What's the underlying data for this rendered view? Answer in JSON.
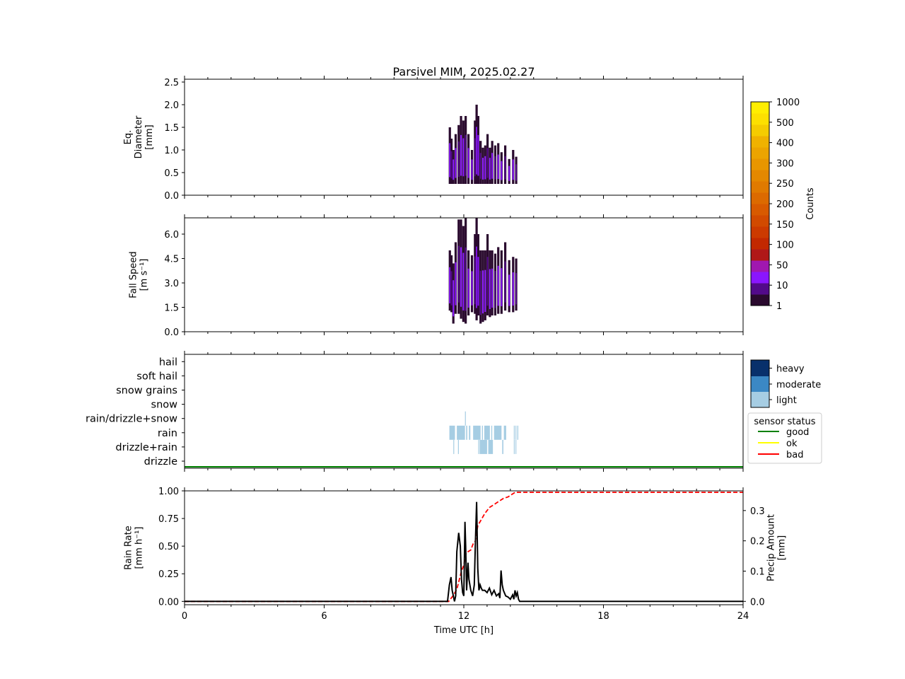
{
  "title": "Parsivel MIM, 2025.02.27",
  "chart_data": [
    {
      "type": "heatmap",
      "panel": "diameter",
      "ylabel": [
        "Eq.",
        "Diameter",
        "[mm]"
      ],
      "xlim": [
        0,
        24
      ],
      "ylim": [
        0,
        2.5
      ],
      "yticks": [
        0.0,
        0.5,
        1.0,
        1.5,
        2.0,
        2.5
      ],
      "ytick_labels": [
        "0.0",
        "0.5",
        "1.0",
        "1.5",
        "2.0",
        "2.5"
      ],
      "columns": [
        {
          "t": 11.4,
          "lo": 0.25,
          "hi": 1.5
        },
        {
          "t": 11.47,
          "lo": 0.25,
          "hi": 1.25
        },
        {
          "t": 11.55,
          "lo": 0.25,
          "hi": 1.0
        },
        {
          "t": 11.65,
          "lo": 0.25,
          "hi": 1.35
        },
        {
          "t": 11.78,
          "lo": 0.25,
          "hi": 1.55
        },
        {
          "t": 11.88,
          "lo": 0.25,
          "hi": 1.75
        },
        {
          "t": 11.98,
          "lo": 0.25,
          "hi": 1.65
        },
        {
          "t": 12.08,
          "lo": 0.25,
          "hi": 1.75
        },
        {
          "t": 12.2,
          "lo": 0.25,
          "hi": 1.35
        },
        {
          "t": 12.35,
          "lo": 0.25,
          "hi": 1.0
        },
        {
          "t": 12.48,
          "lo": 0.25,
          "hi": 1.65
        },
        {
          "t": 12.55,
          "lo": 0.25,
          "hi": 2.0
        },
        {
          "t": 12.62,
          "lo": 0.25,
          "hi": 1.75
        },
        {
          "t": 12.72,
          "lo": 0.25,
          "hi": 1.2
        },
        {
          "t": 12.82,
          "lo": 0.25,
          "hi": 1.05
        },
        {
          "t": 12.92,
          "lo": 0.25,
          "hi": 1.1
        },
        {
          "t": 13.02,
          "lo": 0.25,
          "hi": 1.35
        },
        {
          "t": 13.12,
          "lo": 0.25,
          "hi": 1.05
        },
        {
          "t": 13.22,
          "lo": 0.25,
          "hi": 1.2
        },
        {
          "t": 13.35,
          "lo": 0.25,
          "hi": 1.1
        },
        {
          "t": 13.48,
          "lo": 0.25,
          "hi": 1.15
        },
        {
          "t": 13.62,
          "lo": 0.25,
          "hi": 0.95
        },
        {
          "t": 13.78,
          "lo": 0.25,
          "hi": 1.1
        },
        {
          "t": 13.95,
          "lo": 0.25,
          "hi": 0.8
        },
        {
          "t": 14.12,
          "lo": 0.25,
          "hi": 1.0
        },
        {
          "t": 14.25,
          "lo": 0.25,
          "hi": 0.85
        }
      ]
    },
    {
      "type": "heatmap",
      "panel": "fall_speed",
      "ylabel": [
        "Fall Speed",
        "[m s⁻¹]"
      ],
      "xlim": [
        0,
        24
      ],
      "ylim": [
        0,
        7.0
      ],
      "yticks": [
        0.0,
        1.5,
        3.0,
        4.5,
        6.0
      ],
      "ytick_labels": [
        "0.0",
        "1.5",
        "3.0",
        "4.5",
        "6.0"
      ],
      "columns": [
        {
          "t": 11.4,
          "lo": 1.3,
          "hi": 5.0
        },
        {
          "t": 11.47,
          "lo": 1.2,
          "hi": 4.7
        },
        {
          "t": 11.55,
          "lo": 0.5,
          "hi": 4.2
        },
        {
          "t": 11.65,
          "lo": 1.1,
          "hi": 5.5
        },
        {
          "t": 11.78,
          "lo": 1.1,
          "hi": 6.9
        },
        {
          "t": 11.88,
          "lo": 0.8,
          "hi": 6.9
        },
        {
          "t": 11.98,
          "lo": 0.6,
          "hi": 6.5
        },
        {
          "t": 12.08,
          "lo": 0.5,
          "hi": 7.0
        },
        {
          "t": 12.2,
          "lo": 1.0,
          "hi": 5.0
        },
        {
          "t": 12.35,
          "lo": 1.2,
          "hi": 4.7
        },
        {
          "t": 12.48,
          "lo": 1.1,
          "hi": 6.0
        },
        {
          "t": 12.55,
          "lo": 0.7,
          "hi": 7.0
        },
        {
          "t": 12.62,
          "lo": 1.0,
          "hi": 6.0
        },
        {
          "t": 12.72,
          "lo": 0.5,
          "hi": 5.0
        },
        {
          "t": 12.82,
          "lo": 0.6,
          "hi": 5.0
        },
        {
          "t": 12.92,
          "lo": 0.7,
          "hi": 5.0
        },
        {
          "t": 13.02,
          "lo": 1.0,
          "hi": 6.0
        },
        {
          "t": 13.12,
          "lo": 0.9,
          "hi": 5.0
        },
        {
          "t": 13.22,
          "lo": 1.0,
          "hi": 5.0
        },
        {
          "t": 13.35,
          "lo": 1.0,
          "hi": 4.8
        },
        {
          "t": 13.48,
          "lo": 1.1,
          "hi": 5.2
        },
        {
          "t": 13.62,
          "lo": 1.1,
          "hi": 5.0
        },
        {
          "t": 13.78,
          "lo": 1.3,
          "hi": 5.5
        },
        {
          "t": 13.95,
          "lo": 1.2,
          "hi": 4.4
        },
        {
          "t": 14.12,
          "lo": 1.2,
          "hi": 4.6
        },
        {
          "t": 14.25,
          "lo": 1.3,
          "hi": 4.5
        }
      ]
    },
    {
      "type": "heatmap",
      "panel": "precip_type",
      "xlim": [
        0,
        24
      ],
      "categories": [
        "drizzle",
        "drizzle+rain",
        "rain",
        "rain/drizzle+snow",
        "snow",
        "snow grains",
        "soft hail",
        "hail"
      ],
      "intensity_legend": [
        "light",
        "moderate",
        "heavy"
      ],
      "intensity_colors": [
        "#a6cde3",
        "#3b88c4",
        "#08306b"
      ],
      "status_legend": {
        "title": "sensor status",
        "items": [
          {
            "label": "good",
            "color": "#008000"
          },
          {
            "label": "ok",
            "color": "#ffff00"
          },
          {
            "label": "bad",
            "color": "#ff0000"
          }
        ]
      },
      "status": "good",
      "cells": [
        {
          "t0": 11.38,
          "t1": 11.62,
          "cat": "rain",
          "level": "light"
        },
        {
          "t0": 11.7,
          "t1": 12.05,
          "cat": "rain",
          "level": "light"
        },
        {
          "t0": 12.1,
          "t1": 12.15,
          "cat": "rain",
          "level": "light"
        },
        {
          "t0": 12.22,
          "t1": 12.28,
          "cat": "rain",
          "level": "light"
        },
        {
          "t0": 12.4,
          "t1": 12.72,
          "cat": "rain",
          "level": "light"
        },
        {
          "t0": 12.78,
          "t1": 12.82,
          "cat": "rain",
          "level": "light"
        },
        {
          "t0": 12.88,
          "t1": 13.12,
          "cat": "rain",
          "level": "light"
        },
        {
          "t0": 13.18,
          "t1": 13.22,
          "cat": "rain",
          "level": "light"
        },
        {
          "t0": 13.3,
          "t1": 13.62,
          "cat": "rain",
          "level": "light"
        },
        {
          "t0": 13.72,
          "t1": 13.82,
          "cat": "rain",
          "level": "light"
        },
        {
          "t0": 14.15,
          "t1": 14.18,
          "cat": "rain",
          "level": "light"
        },
        {
          "t0": 14.22,
          "t1": 14.25,
          "cat": "rain",
          "level": "light"
        },
        {
          "t0": 14.3,
          "t1": 14.34,
          "cat": "rain",
          "level": "light"
        },
        {
          "t0": 12.05,
          "t1": 12.08,
          "cat": "rain/drizzle+snow",
          "level": "light"
        },
        {
          "t0": 11.55,
          "t1": 11.58,
          "cat": "drizzle+rain",
          "level": "light"
        },
        {
          "t0": 11.75,
          "t1": 11.78,
          "cat": "drizzle+rain",
          "level": "light"
        },
        {
          "t0": 12.62,
          "t1": 12.65,
          "cat": "drizzle+rain",
          "level": "light"
        },
        {
          "t0": 12.68,
          "t1": 13.0,
          "cat": "drizzle+rain",
          "level": "light"
        },
        {
          "t0": 13.05,
          "t1": 13.25,
          "cat": "drizzle+rain",
          "level": "light"
        },
        {
          "t0": 13.65,
          "t1": 13.7,
          "cat": "drizzle+rain",
          "level": "light"
        },
        {
          "t0": 14.15,
          "t1": 14.18,
          "cat": "drizzle+rain",
          "level": "light"
        },
        {
          "t0": 14.22,
          "t1": 14.25,
          "cat": "drizzle+rain",
          "level": "light"
        }
      ]
    },
    {
      "type": "line",
      "panel": "rain_rate",
      "xlabel": "Time UTC [h]",
      "xlim": [
        0,
        24
      ],
      "xticks": [
        0,
        6,
        12,
        18,
        24
      ],
      "xtick_labels": [
        "0",
        "6",
        "12",
        "18",
        "24"
      ],
      "ylabel": [
        "Rain Rate",
        "[mm h⁻¹]"
      ],
      "ylim": [
        -0.03,
        1.0
      ],
      "yticks": [
        0.0,
        0.25,
        0.5,
        0.75,
        1.0
      ],
      "ytick_labels": [
        "0.00",
        "0.25",
        "0.50",
        "0.75",
        "1.00"
      ],
      "y2label": [
        "Precip Amount",
        "[mm]"
      ],
      "y2lim": [
        -0.011,
        0.365
      ],
      "y2ticks": [
        0.0,
        0.1,
        0.2,
        0.3
      ],
      "y2tick_labels": [
        "0.0",
        "0.1",
        "0.2",
        "0.3"
      ],
      "series": [
        {
          "color": "#000000",
          "x": [
            0,
            11.3,
            11.38,
            11.45,
            11.5,
            11.55,
            11.6,
            11.65,
            11.7,
            11.78,
            11.85,
            11.9,
            11.95,
            12.0,
            12.05,
            12.08,
            12.12,
            12.18,
            12.22,
            12.3,
            12.38,
            12.45,
            12.5,
            12.55,
            12.6,
            12.65,
            12.7,
            12.75,
            12.8,
            12.9,
            13.0,
            13.1,
            13.2,
            13.3,
            13.4,
            13.5,
            13.55,
            13.6,
            13.65,
            13.7,
            13.8,
            13.9,
            14.0,
            14.1,
            14.15,
            14.2,
            14.25,
            14.3,
            14.35,
            14.4,
            24
          ],
          "y": [
            0,
            0,
            0.15,
            0.22,
            0.1,
            0.05,
            0.0,
            0.05,
            0.45,
            0.62,
            0.5,
            0.2,
            0.08,
            0.05,
            0.72,
            0.5,
            0.1,
            0.35,
            0.2,
            0.1,
            0.05,
            0.15,
            0.55,
            0.9,
            0.3,
            0.1,
            0.15,
            0.12,
            0.1,
            0.1,
            0.08,
            0.12,
            0.06,
            0.1,
            0.05,
            0.07,
            0.03,
            0.28,
            0.15,
            0.1,
            0.05,
            0.04,
            0.02,
            0.06,
            0.02,
            0.1,
            0.05,
            0.08,
            0.02,
            0.0,
            0
          ]
        },
        {
          "color": "#ff0000",
          "style": "dashed",
          "x": [
            0,
            11.35,
            11.55,
            11.7,
            11.8,
            11.9,
            12.0,
            12.1,
            12.3,
            12.4,
            12.5,
            12.6,
            12.75,
            12.9,
            13.1,
            13.3,
            13.5,
            13.7,
            13.9,
            14.0,
            14.1,
            14.2,
            24
          ],
          "y": [
            0,
            0,
            0.02,
            0.04,
            0.07,
            0.1,
            0.12,
            0.16,
            0.17,
            0.19,
            0.2,
            0.25,
            0.27,
            0.29,
            0.31,
            0.32,
            0.33,
            0.34,
            0.345,
            0.35,
            0.355,
            0.36,
            0.36
          ]
        }
      ]
    }
  ],
  "colorbar": {
    "label": "Counts",
    "tick_labels": [
      "1",
      "10",
      "50",
      "100",
      "150",
      "200",
      "250",
      "300",
      "400",
      "500",
      "1000"
    ],
    "colors": [
      "#2a0a2e",
      "#520a8a",
      "#8a16ff",
      "#a018b0",
      "#b01818",
      "#c22800",
      "#cc3a00",
      "#d24a00",
      "#d85a00",
      "#dc6a00",
      "#e07a00",
      "#e48800",
      "#e89600",
      "#eca400",
      "#f0b200",
      "#f5cc00",
      "#fde000",
      "#ffee00"
    ]
  },
  "precip_colors": {
    "low": "#2a0a2e",
    "mid": "#520a8a",
    "high": "#8a16ff"
  }
}
